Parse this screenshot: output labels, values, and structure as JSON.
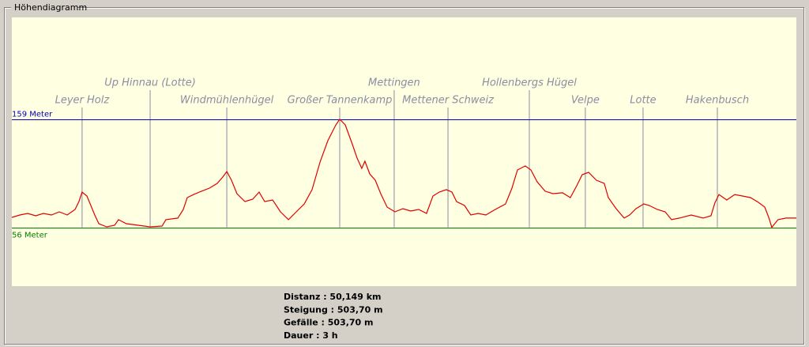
{
  "chart_data": {
    "type": "line",
    "title": "Höhendiagramm",
    "color": "#e00000",
    "xlim": [
      0,
      50.15
    ],
    "ylim": [
      0,
      256
    ],
    "yticks": [
      {
        "value": 56,
        "label": "56 Meter"
      },
      {
        "value": 159,
        "label": "159 Meter"
      }
    ],
    "ytick_colors": [
      "#008000",
      "#0000c0"
    ],
    "x": [
      0,
      0.51,
      1.01,
      1.52,
      2.02,
      2.53,
      3.03,
      3.54,
      4.04,
      4.29,
      4.49,
      4.8,
      5.05,
      5.3,
      5.56,
      6.06,
      6.57,
      6.82,
      7.32,
      8.08,
      8.84,
      9.6,
      9.85,
      10.61,
      10.96,
      11.21,
      11.62,
      12.12,
      12.63,
      13.13,
      13.48,
      13.74,
      14.04,
      14.39,
      14.9,
      15.4,
      15.81,
      16.16,
      16.67,
      17.17,
      17.68,
      18.18,
      18.69,
      19.19,
      19.7,
      20.2,
      20.71,
      20.96,
      21.31,
      21.72,
      22.07,
      22.37,
      22.57,
      22.88,
      23.23,
      23.58,
      23.99,
      24.49,
      25,
      25.5,
      26.01,
      26.51,
      26.92,
      27.32,
      27.77,
      28.13,
      28.43,
      28.94,
      29.34,
      29.8,
      30.3,
      30.81,
      31.56,
      31.97,
      32.32,
      32.82,
      33.18,
      33.58,
      34.09,
      34.59,
      35.2,
      35.7,
      36.11,
      36.46,
      36.87,
      37.37,
      37.87,
      38.13,
      38.63,
      39.14,
      39.49,
      39.9,
      40.4,
      40.75,
      41.26,
      41.76,
      42.17,
      42.67,
      43.43,
      44.19,
      44.69,
      44.94,
      45.2,
      45.7,
      46.21,
      46.71,
      47.22,
      47.72,
      48.13,
      48.38,
      48.58,
      48.98,
      49.49,
      50.15
    ],
    "values": [
      65.5,
      67.8,
      69.3,
      67,
      69.3,
      67.8,
      70.8,
      67.8,
      73,
      80.6,
      89.6,
      85.8,
      76.8,
      67.8,
      59.5,
      56.5,
      58,
      63.3,
      59.5,
      58,
      56.5,
      57.2,
      63.3,
      64.8,
      73,
      84.3,
      87.3,
      90.4,
      93.4,
      97.9,
      103.9,
      109.2,
      100.9,
      88.1,
      80.6,
      82.8,
      89.6,
      80.6,
      82.1,
      70.8,
      63.3,
      70.8,
      78.3,
      91.9,
      118.2,
      138.6,
      153.6,
      159,
      153.6,
      137,
      122,
      112.2,
      119,
      106.9,
      100.9,
      88.1,
      75.3,
      70.8,
      73.8,
      71.5,
      73,
      69.3,
      85.8,
      89.6,
      91.9,
      89.6,
      80.6,
      76.8,
      67.8,
      69.3,
      67.8,
      72.3,
      78.3,
      93.4,
      110.7,
      114.5,
      110.7,
      99.4,
      90.4,
      88.1,
      88.9,
      84.3,
      95.6,
      106.2,
      108.4,
      100.9,
      97.9,
      84.3,
      73.8,
      64.8,
      67.8,
      73.8,
      78.3,
      76.8,
      73,
      70.8,
      63.3,
      64.8,
      67.8,
      64.8,
      67,
      79.1,
      87.3,
      82.1,
      87.3,
      85.8,
      84.3,
      79.8,
      75.3,
      65.5,
      56,
      63.3,
      64.8,
      64.8
    ],
    "annotations": [
      {
        "label": "Leyer Holz",
        "x": 4.49
      },
      {
        "label": "Up Hinnau (Lotte)",
        "x": 8.84
      },
      {
        "label": "Windmühlenhügel",
        "x": 13.74
      },
      {
        "label": "Großer Tannenkamp",
        "x": 20.96
      },
      {
        "label": "Mettingen",
        "x": 24.44
      },
      {
        "label": "Mettener Schweiz",
        "x": 27.88
      },
      {
        "label": "Hollenbergs Hügel",
        "x": 33.08
      },
      {
        "label": "Velpe",
        "x": 36.66
      },
      {
        "label": "Lotte",
        "x": 40.35
      },
      {
        "label": "Hakenbusch",
        "x": 45.1
      }
    ]
  },
  "stats": [
    "Distanz : 50,149 km",
    "Steigung : 503,70 m",
    "Gefälle : 503,70 m",
    "Dauer : 3 h"
  ]
}
